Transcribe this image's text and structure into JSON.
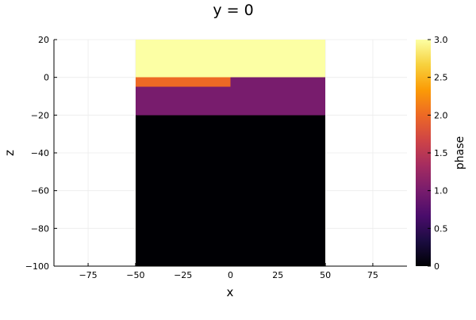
{
  "chart_data": {
    "type": "heatmap",
    "title": "y = 0",
    "xlabel": "x",
    "ylabel": "z",
    "xlim": [
      -93,
      93
    ],
    "ylim": [
      -100,
      20
    ],
    "xticks": [
      -75,
      -50,
      -25,
      0,
      25,
      50,
      75
    ],
    "yticks": [
      20,
      0,
      -20,
      -40,
      -60,
      -80,
      -100
    ],
    "grid": true,
    "regions": [
      {
        "x": [
          -50,
          50
        ],
        "z": [
          0,
          20
        ],
        "phase": 3.0
      },
      {
        "x": [
          -50,
          0
        ],
        "z": [
          -5,
          0
        ],
        "phase": 2.0
      },
      {
        "x": [
          0,
          50
        ],
        "z": [
          -5,
          0
        ],
        "phase": 1.0
      },
      {
        "x": [
          -50,
          50
        ],
        "z": [
          -20,
          -5
        ],
        "phase": 1.0
      },
      {
        "x": [
          -50,
          50
        ],
        "z": [
          -100,
          -20
        ],
        "phase": 0.0
      }
    ],
    "colorbar": {
      "label": "phase",
      "range": [
        0,
        3
      ],
      "ticks": [
        "0",
        "0.5",
        "1.0",
        "1.5",
        "2.0",
        "2.5",
        "3.0"
      ],
      "colormap": "inferno",
      "colors": [
        "#000004",
        "#1b0c41",
        "#4a0c6b",
        "#781c6d",
        "#a52c60",
        "#cf4446",
        "#ed6925",
        "#fb9b06",
        "#f7d13d",
        "#fcffa4"
      ]
    }
  }
}
